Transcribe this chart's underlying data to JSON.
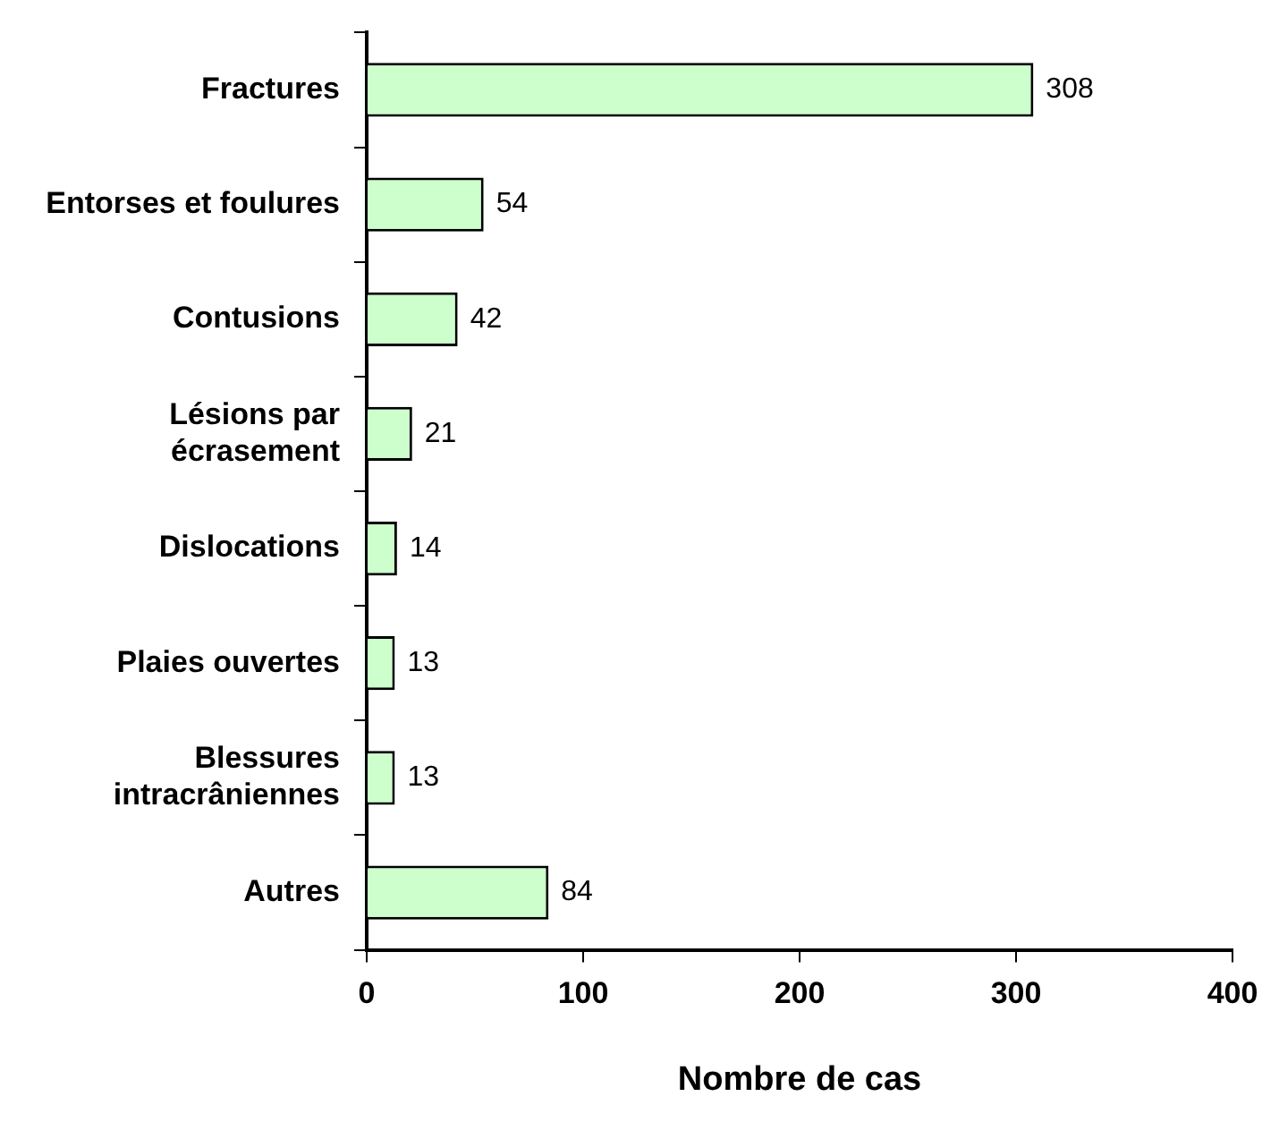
{
  "chart_data": {
    "type": "bar",
    "orientation": "horizontal",
    "xlabel": "Nombre de cas",
    "categories": [
      "Fractures",
      "Entorses et foulures",
      "Contusions",
      "Lésions par écrasement",
      "Dislocations",
      "Plaies ouvertes",
      "Blessures intracrâniennes",
      "Autres"
    ],
    "values": [
      308,
      54,
      42,
      21,
      14,
      13,
      13,
      84
    ],
    "color": "#ccffcc",
    "xlim": [
      0,
      400
    ],
    "xticks": [
      0,
      100,
      200,
      300,
      400
    ],
    "grid": false,
    "legend": false,
    "data_labels": true
  }
}
